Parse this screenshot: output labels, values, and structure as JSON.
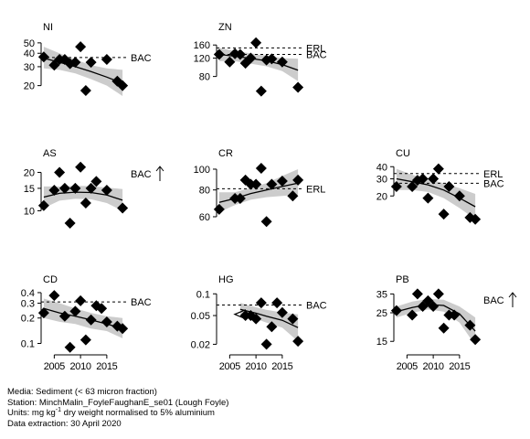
{
  "footer": {
    "media_prefix": "Media: ",
    "media": "Sediment (< 63 micron fraction)",
    "station_prefix": "Station: ",
    "station": "MinchMalin_FoyleFaughanE_se01 (Lough Foyle)",
    "units_prefix": "Units:  mg kg",
    "units_exponent": "-1",
    "units_suffix": " dry weight normalised to 5% aluminium",
    "extraction_prefix": "Data extraction: ",
    "extraction": "30 April 2020"
  },
  "style": {
    "point_color": "#000000",
    "band_color": "#cccccc",
    "trend_color": "#000000",
    "reference_line_color": "#000000"
  },
  "chart_data": [
    {
      "id": "ni",
      "title": "NI",
      "type": "scatter",
      "scale": "log",
      "ylim": [
        16,
        55
      ],
      "yticks": [
        20,
        30,
        40,
        50
      ],
      "xlim": [
        2002.5,
        2018.5
      ],
      "x": [
        2003,
        2005,
        2006,
        2007,
        2008,
        2009,
        2010,
        2011,
        2012,
        2015,
        2017,
        2018
      ],
      "y": [
        37,
        31,
        35,
        35,
        32,
        33,
        46,
        18,
        33,
        35,
        22,
        20
      ],
      "trend": {
        "x": [
          2003,
          2006,
          2009,
          2012,
          2015,
          2018
        ],
        "y": [
          36,
          33,
          30,
          27,
          24,
          21
        ]
      },
      "band": {
        "upper": [
          46,
          40,
          35,
          31,
          29,
          28
        ],
        "lower": [
          29,
          28,
          26,
          23,
          20,
          16
        ]
      },
      "reference_lines": [
        {
          "label": "BAC",
          "value": 36.5
        }
      ],
      "arrow": null
    },
    {
      "id": "zn",
      "title": "ZN",
      "type": "scatter",
      "scale": "log",
      "ylim": [
        52,
        185
      ],
      "yticks": [
        80,
        120,
        160
      ],
      "xlim": [
        2002.5,
        2018.5
      ],
      "x": [
        2003,
        2005,
        2006,
        2007,
        2008,
        2009,
        2010,
        2011,
        2012,
        2013,
        2015,
        2018
      ],
      "y": [
        130,
        110,
        132,
        130,
        107,
        120,
        168,
        58,
        115,
        118,
        110,
        63
      ],
      "trend": {
        "x": [
          2003,
          2006,
          2009,
          2012,
          2015,
          2018
        ],
        "y": [
          130,
          125,
          119,
          113,
          104,
          92
        ]
      },
      "band": {
        "upper": [
          150,
          140,
          133,
          127,
          120,
          118
        ],
        "lower": [
          112,
          112,
          106,
          100,
          90,
          72
        ]
      },
      "reference_lines": [
        {
          "label": "ERL",
          "value": 150
        },
        {
          "label": "BAC",
          "value": 130
        }
      ],
      "arrow": null
    },
    {
      "id": "cu",
      "title": "CU",
      "type": "scatter",
      "scale": "log",
      "ylim": [
        10.5,
        42
      ],
      "yticks": [
        20,
        30,
        40
      ],
      "xlim": [
        2002.5,
        2018.5
      ],
      "x": [
        2003,
        2006,
        2007,
        2008,
        2009,
        2010,
        2011,
        2012,
        2013,
        2015,
        2017,
        2018
      ],
      "y": [
        25,
        25,
        29,
        30,
        19,
        30,
        38,
        13,
        25,
        20,
        12,
        11.5
      ],
      "trend": {
        "x": [
          2003,
          2006,
          2009,
          2012,
          2015,
          2018
        ],
        "y": [
          30,
          28,
          26,
          23,
          19,
          15.5
        ]
      },
      "band": {
        "upper": [
          38,
          33,
          30,
          27,
          24,
          21
        ],
        "lower": [
          23,
          23,
          22,
          19,
          15,
          11.5
        ]
      },
      "reference_lines": [
        {
          "label": "ERL",
          "value": 34
        },
        {
          "label": "BAC",
          "value": 27
        }
      ],
      "arrow": null
    },
    {
      "id": "as",
      "title": "AS",
      "type": "scatter",
      "scale": "log",
      "ylim": [
        8,
        23
      ],
      "yticks": [
        10,
        15,
        20
      ],
      "xlim": [
        2002.5,
        2018.5
      ],
      "x": [
        2003,
        2005,
        2006,
        2007,
        2008,
        2009,
        2010,
        2011,
        2012,
        2013,
        2015,
        2018
      ],
      "y": [
        11,
        14.5,
        20,
        15,
        8,
        15,
        22,
        11.5,
        15,
        17,
        14.5,
        10.5
      ],
      "trend": {
        "x": [
          2003,
          2006,
          2009,
          2012,
          2015,
          2018
        ],
        "y": [
          12.8,
          13.7,
          14,
          13.9,
          13.3,
          12.1
        ]
      },
      "band": {
        "upper": [
          15.5,
          15.5,
          15.7,
          15.6,
          15.2,
          14.8
        ],
        "lower": [
          10.5,
          12,
          12.4,
          12.3,
          11.5,
          10
        ]
      },
      "reference_lines": [],
      "arrow": {
        "label": "BAC",
        "direction": "up"
      }
    },
    {
      "id": "cr",
      "title": "CR",
      "type": "scatter",
      "scale": "log",
      "ylim": [
        56,
        105
      ],
      "yticks": [
        60,
        80,
        100
      ],
      "xlim": [
        2002.5,
        2018.5
      ],
      "x": [
        2003,
        2006,
        2007,
        2008,
        2009,
        2010,
        2011,
        2012,
        2013,
        2015,
        2017,
        2018
      ],
      "y": [
        65,
        73,
        73,
        89,
        85,
        85,
        101,
        57,
        85,
        88,
        75,
        89
      ],
      "trend": {
        "x": [
          2003,
          2006,
          2009,
          2012,
          2015,
          2018
        ],
        "y": [
          70,
          73,
          77,
          80,
          83,
          86
        ]
      },
      "band": {
        "upper": [
          78,
          78,
          82,
          86,
          93,
          100
        ],
        "lower": [
          63,
          68,
          72,
          74,
          75,
          76
        ]
      },
      "reference_lines": [
        {
          "label": "ERL",
          "value": 81
        }
      ],
      "arrow": null
    },
    {
      "id": "cd",
      "title": "CD",
      "type": "scatter",
      "scale": "log",
      "ylim": [
        0.085,
        0.42
      ],
      "yticks": [
        0.1,
        0.2,
        0.3,
        0.4
      ],
      "xlim": [
        2002.5,
        2018.5
      ],
      "x": [
        2003,
        2005,
        2007,
        2008,
        2009,
        2010,
        2011,
        2012,
        2013,
        2014,
        2015,
        2017,
        2018
      ],
      "y": [
        0.23,
        0.37,
        0.21,
        0.09,
        0.24,
        0.32,
        0.11,
        0.19,
        0.28,
        0.26,
        0.18,
        0.16,
        0.15
      ],
      "trend": {
        "x": [
          2003,
          2006,
          2009,
          2012,
          2015,
          2018
        ],
        "y": [
          0.26,
          0.23,
          0.21,
          0.19,
          0.17,
          0.15
        ]
      },
      "band": {
        "upper": [
          0.34,
          0.3,
          0.26,
          0.23,
          0.21,
          0.2
        ],
        "lower": [
          0.2,
          0.18,
          0.17,
          0.15,
          0.14,
          0.115
        ]
      },
      "reference_lines": [
        {
          "label": "BAC",
          "value": 0.31
        }
      ],
      "arrow": null
    },
    {
      "id": "hg",
      "title": "HG",
      "type": "scatter",
      "scale": "log",
      "ylim": [
        0.017,
        0.11
      ],
      "yticks": [
        0.02,
        0.05,
        0.1
      ],
      "xlim": [
        2002.5,
        2018.5
      ],
      "x": [
        2008,
        2009,
        2010,
        2011,
        2012,
        2013,
        2014,
        2015,
        2017,
        2018
      ],
      "y": [
        0.05,
        0.05,
        0.045,
        0.075,
        0.02,
        0.035,
        0.075,
        0.055,
        0.045,
        0.022
      ],
      "censored_point": {
        "x": 2007,
        "y": 0.052
      },
      "trend": {
        "x": [
          2007,
          2010,
          2012,
          2015,
          2018
        ],
        "y": [
          0.061,
          0.054,
          0.049,
          0.043,
          0.034
        ]
      },
      "band": {
        "upper": [
          0.075,
          0.065,
          0.06,
          0.055,
          0.052
        ],
        "lower": [
          0.049,
          0.045,
          0.04,
          0.034,
          0.022
        ]
      },
      "reference_lines": [
        {
          "label": "BAC",
          "value": 0.07
        }
      ],
      "arrow": null
    },
    {
      "id": "pb",
      "title": "PB",
      "type": "scatter",
      "scale": "log",
      "ylim": [
        13,
        37
      ],
      "yticks": [
        15,
        25,
        35
      ],
      "xlim": [
        2002.5,
        2018.5
      ],
      "x": [
        2003,
        2006,
        2007,
        2008,
        2009,
        2010,
        2011,
        2012,
        2013,
        2014,
        2017,
        2018
      ],
      "y": [
        26,
        24,
        35,
        28,
        31,
        28,
        35,
        19,
        24,
        24,
        20,
        15.5
      ],
      "trend": {
        "x": [
          2003,
          2006,
          2009,
          2012,
          2015,
          2018
        ],
        "y": [
          25.5,
          27.5,
          29,
          28.5,
          24.5,
          18
        ]
      },
      "band": {
        "upper": [
          28,
          30.5,
          32,
          31.5,
          28,
          23
        ],
        "lower": [
          23,
          25,
          26.5,
          25.5,
          21,
          14
        ]
      },
      "reference_lines": [],
      "arrow": {
        "label": "BAC",
        "direction": "up"
      }
    }
  ],
  "x_axis": {
    "ticks": [
      2005,
      2010,
      2015
    ],
    "tick_labels": [
      "2005",
      "2010",
      "2015"
    ]
  }
}
